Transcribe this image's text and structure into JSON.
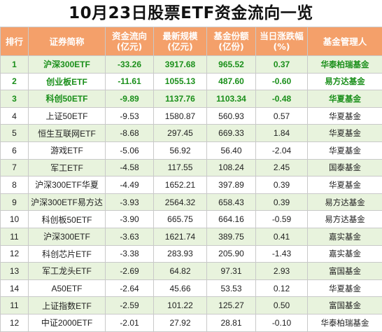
{
  "title": "10月23日股票ETF资金流向一览",
  "headers": {
    "rank": "排行",
    "name": "证券简称",
    "flow_l1": "资金流向",
    "flow_l2": "(亿元)",
    "scale_l1": "最新规模",
    "scale_l2": "(亿元)",
    "shares_l1": "基金份额",
    "shares_l2": "(亿份)",
    "chg_l1": "当日涨跌幅",
    "chg_l2": "(%)",
    "manager": "基金管理人"
  },
  "rows": [
    {
      "rank": "1",
      "name": "沪深300ETF",
      "flow": "-33.26",
      "scale": "3917.68",
      "shares": "965.52",
      "chg": "0.37",
      "manager": "华泰柏瑞基金"
    },
    {
      "rank": "2",
      "name": "创业板ETF",
      "flow": "-11.61",
      "scale": "1055.13",
      "shares": "487.60",
      "chg": "-0.60",
      "manager": "易方达基金"
    },
    {
      "rank": "3",
      "name": "科创50ETF",
      "flow": "-9.89",
      "scale": "1137.76",
      "shares": "1103.34",
      "chg": "-0.48",
      "manager": "华夏基金"
    },
    {
      "rank": "4",
      "name": "上证50ETF",
      "flow": "-9.53",
      "scale": "1580.87",
      "shares": "560.93",
      "chg": "0.57",
      "manager": "华夏基金"
    },
    {
      "rank": "5",
      "name": "恒生互联网ETF",
      "flow": "-8.68",
      "scale": "297.45",
      "shares": "669.33",
      "chg": "1.84",
      "manager": "华夏基金"
    },
    {
      "rank": "6",
      "name": "游戏ETF",
      "flow": "-5.06",
      "scale": "56.92",
      "shares": "56.40",
      "chg": "-2.04",
      "manager": "华夏基金"
    },
    {
      "rank": "7",
      "name": "军工ETF",
      "flow": "-4.58",
      "scale": "117.55",
      "shares": "108.24",
      "chg": "2.45",
      "manager": "国泰基金"
    },
    {
      "rank": "8",
      "name": "沪深300ETF华夏",
      "flow": "-4.49",
      "scale": "1652.21",
      "shares": "397.89",
      "chg": "0.39",
      "manager": "华夏基金"
    },
    {
      "rank": "9",
      "name": "沪深300ETF易方达",
      "flow": "-3.93",
      "scale": "2564.32",
      "shares": "658.43",
      "chg": "0.39",
      "manager": "易方达基金"
    },
    {
      "rank": "10",
      "name": "科创板50ETF",
      "flow": "-3.90",
      "scale": "665.75",
      "shares": "664.16",
      "chg": "-0.59",
      "manager": "易方达基金"
    },
    {
      "rank": "11",
      "name": "沪深300ETF",
      "flow": "-3.63",
      "scale": "1621.74",
      "shares": "389.75",
      "chg": "0.41",
      "manager": "嘉实基金"
    },
    {
      "rank": "12",
      "name": "科创芯片ETF",
      "flow": "-3.38",
      "scale": "283.93",
      "shares": "205.90",
      "chg": "-1.43",
      "manager": "嘉实基金"
    },
    {
      "rank": "13",
      "name": "军工龙头ETF",
      "flow": "-2.69",
      "scale": "64.82",
      "shares": "97.31",
      "chg": "2.93",
      "manager": "富国基金"
    },
    {
      "rank": "14",
      "name": "A50ETF",
      "flow": "-2.64",
      "scale": "45.66",
      "shares": "53.53",
      "chg": "0.12",
      "manager": "华夏基金"
    },
    {
      "rank": "11",
      "name": "上证指数ETF",
      "flow": "-2.59",
      "scale": "101.22",
      "shares": "125.27",
      "chg": "0.50",
      "manager": "富国基金"
    },
    {
      "rank": "12",
      "name": "中证2000ETF",
      "flow": "-2.01",
      "scale": "27.92",
      "shares": "28.81",
      "chg": "-0.10",
      "manager": "华泰柏瑞基金"
    }
  ],
  "colors": {
    "header_bg": "#f4a06a",
    "stripe": "#e8f3dd",
    "top3_text": "#1a8f1a"
  }
}
